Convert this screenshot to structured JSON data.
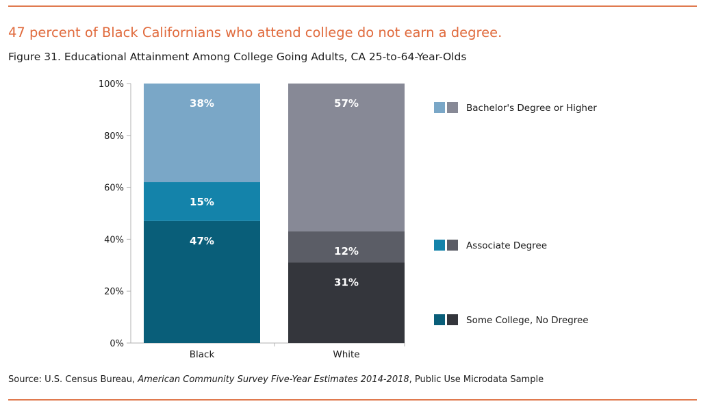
{
  "headline": "47 percent of Black Californians who attend college do not earn a degree.",
  "figure_title": "Figure 31. Educational Attainment Among College Going Adults, CA 25-to-64-Year-Olds",
  "source": {
    "prefix": "Source: U.S. Census Bureau, ",
    "italic": "American Community Survey Five-Year Estimates 2014-2018",
    "suffix": ", Public Use Microdata Sample"
  },
  "colors": {
    "rule": "#e07a4f",
    "headline": "#e06a3c"
  },
  "chart_data": {
    "type": "bar",
    "stacked": true,
    "categories": [
      "Black",
      "White"
    ],
    "ylim": [
      0,
      100
    ],
    "yticks": [
      "0%",
      "20%",
      "40%",
      "60%",
      "80%",
      "100%"
    ],
    "series": [
      {
        "name": "Some College, No Dregree",
        "values": [
          47,
          31
        ],
        "labels": [
          "47%",
          "31%"
        ],
        "colors": [
          "#095e79",
          "#34363c"
        ]
      },
      {
        "name": "Associate Degree",
        "values": [
          15,
          12
        ],
        "labels": [
          "15%",
          "12%"
        ],
        "colors": [
          "#1483aa",
          "#5b5d66"
        ]
      },
      {
        "name": "Bachelor's Degree or Higher",
        "values": [
          38,
          57
        ],
        "labels": [
          "38%",
          "57%"
        ],
        "colors": [
          "#7aa7c7",
          "#878996"
        ]
      }
    ],
    "legend": [
      {
        "label": "Bachelor's Degree or Higher",
        "colors": [
          "#7aa7c7",
          "#878996"
        ]
      },
      {
        "label": "Associate Degree",
        "colors": [
          "#1483aa",
          "#5b5d66"
        ]
      },
      {
        "label": "Some College, No Dregree",
        "colors": [
          "#095e79",
          "#34363c"
        ]
      }
    ],
    "legend_position": "right"
  }
}
